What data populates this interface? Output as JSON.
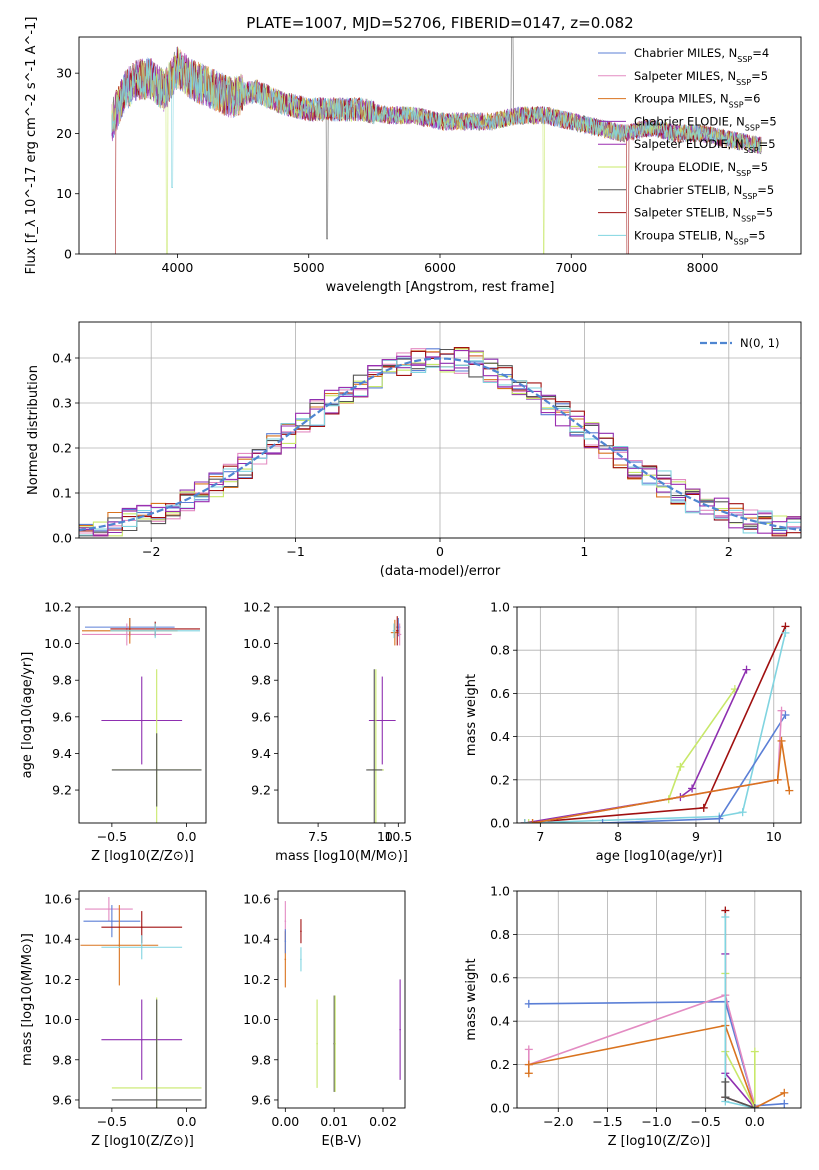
{
  "title": "PLATE=1007, MJD=52706, FIBERID=0147, z=0.082",
  "colors": {
    "chabrier_miles": "#5b7fd6",
    "salpeter_miles": "#e38bc2",
    "kroupa_miles": "#d9731f",
    "chabrier_elodie": "#8e2fb0",
    "salpeter_elodie": "#9b2fb0",
    "kroupa_elodie": "#c8e86a",
    "chabrier_stelib": "#555555",
    "salpeter_stelib": "#a01010",
    "kroupa_stelib": "#80d4e0",
    "gauss": "#4f86d1",
    "grid": "#b0b0b0"
  },
  "chart_data": [
    {
      "id": "spectrum",
      "type": "line",
      "title": "PLATE=1007, MJD=52706, FIBERID=0147, z=0.082",
      "xlabel": "wavelength [Angstrom, rest frame]",
      "ylabel": "Flux [f_λ 10^-17 erg cm^-2 s^-1 A^-1]",
      "xlim": [
        3250,
        8750
      ],
      "ylim": [
        0,
        36
      ],
      "xticks": [
        4000,
        5000,
        6000,
        7000,
        8000
      ],
      "yticks": [
        0,
        10,
        20,
        30
      ],
      "grid": false,
      "legend_position": "top-right",
      "legend": [
        {
          "name": "Chabrier MILES, N",
          "sub": "SSP",
          "suffix": "=4",
          "color_key": "chabrier_miles"
        },
        {
          "name": "Salpeter MILES, N",
          "sub": "SSP",
          "suffix": "=5",
          "color_key": "salpeter_miles"
        },
        {
          "name": "Kroupa MILES, N",
          "sub": "SSP",
          "suffix": "=6",
          "color_key": "kroupa_miles"
        },
        {
          "name": "Chabrier ELODIE, N",
          "sub": "SSP",
          "suffix": "=5",
          "color_key": "chabrier_elodie"
        },
        {
          "name": "Salpeter ELODIE, N",
          "sub": "SSP",
          "suffix": "=5",
          "color_key": "salpeter_elodie"
        },
        {
          "name": "Kroupa ELODIE, N",
          "sub": "SSP",
          "suffix": "=5",
          "color_key": "kroupa_elodie"
        },
        {
          "name": "Chabrier STELIB, N",
          "sub": "SSP",
          "suffix": "=5",
          "color_key": "chabrier_stelib"
        },
        {
          "name": "Salpeter STELIB, N",
          "sub": "SSP",
          "suffix": "=5",
          "color_key": "salpeter_stelib"
        },
        {
          "name": "Kroupa STELIB, N",
          "sub": "SSP",
          "suffix": "=5",
          "color_key": "kroupa_stelib"
        }
      ],
      "envelope": [
        [
          3500,
          22
        ],
        [
          3600,
          27
        ],
        [
          3700,
          29
        ],
        [
          3800,
          29
        ],
        [
          3900,
          27
        ],
        [
          4000,
          31
        ],
        [
          4100,
          29
        ],
        [
          4200,
          28
        ],
        [
          4400,
          26
        ],
        [
          4600,
          27
        ],
        [
          4800,
          25
        ],
        [
          5000,
          24
        ],
        [
          5200,
          24
        ],
        [
          5400,
          24
        ],
        [
          5600,
          23
        ],
        [
          5800,
          23
        ],
        [
          6000,
          22
        ],
        [
          6200,
          22
        ],
        [
          6400,
          22
        ],
        [
          6600,
          23
        ],
        [
          6800,
          23
        ],
        [
          7000,
          22
        ],
        [
          7200,
          21
        ],
        [
          7400,
          20
        ],
        [
          7600,
          21
        ],
        [
          7800,
          20
        ],
        [
          8000,
          20
        ],
        [
          8200,
          19
        ],
        [
          8450,
          18
        ]
      ]
    },
    {
      "id": "residuals",
      "type": "line",
      "xlabel": "(data-model)/error",
      "ylabel": "Normed distribution",
      "xlim": [
        -2.5,
        2.5
      ],
      "ylim": [
        0,
        0.48
      ],
      "xticks": [
        -2,
        -1,
        0,
        1,
        2
      ],
      "yticks": [
        0.0,
        0.1,
        0.2,
        0.3,
        0.4
      ],
      "grid": true,
      "legend_position": "top-right",
      "legend": [
        {
          "name": "N(0, 1)",
          "color_key": "gauss"
        }
      ],
      "gauss": {
        "mean": 0,
        "sigma": 1
      }
    },
    {
      "id": "age_vs_Z",
      "type": "scatter",
      "xlabel": "Z [log10(Z/Z⊙)]",
      "ylabel": "age [log10(age/yr)]",
      "xlim": [
        -0.72,
        0.13
      ],
      "ylim": [
        9.02,
        10.2
      ],
      "xticks": [
        -0.5,
        0.0
      ],
      "yticks": [
        9.2,
        9.4,
        9.6,
        9.8,
        10.0,
        10.2
      ],
      "grid": false,
      "points": [
        {
          "x": -0.38,
          "y": 10.09,
          "xerr": 0.3,
          "yerr": 0.05,
          "color_key": "chabrier_miles"
        },
        {
          "x": -0.4,
          "y": 10.05,
          "xerr": 0.3,
          "yerr": 0.06,
          "color_key": "salpeter_miles"
        },
        {
          "x": -0.38,
          "y": 10.07,
          "xerr": 0.32,
          "yerr": 0.07,
          "color_key": "kroupa_miles"
        },
        {
          "x": -0.21,
          "y": 10.08,
          "xerr": 0.3,
          "yerr": 0.04,
          "color_key": "salpeter_stelib"
        },
        {
          "x": -0.21,
          "y": 10.07,
          "xerr": 0.3,
          "yerr": 0.04,
          "color_key": "kroupa_stelib"
        },
        {
          "x": -0.3,
          "y": 9.58,
          "xerr": 0.27,
          "yerr": 0.24,
          "color_key": "chabrier_elodie"
        },
        {
          "x": -0.2,
          "y": 9.31,
          "xerr": 0.3,
          "yerr": 0.55,
          "color_key": "kroupa_elodie"
        },
        {
          "x": -0.2,
          "y": 9.31,
          "xerr": 0.3,
          "yerr": 0.2,
          "color_key": "chabrier_stelib"
        }
      ]
    },
    {
      "id": "age_vs_mass",
      "type": "scatter",
      "xlabel": "mass [log10(M/M⊙)]",
      "ylabel": "",
      "xlim": [
        6.0,
        10.75
      ],
      "ylim": [
        9.02,
        10.2
      ],
      "xticks": [
        7.5,
        10,
        10.5
      ],
      "yticks": [
        9.2,
        9.4,
        9.6,
        9.8,
        10.0,
        10.2
      ],
      "grid": false,
      "points": [
        {
          "x": 10.5,
          "y": 10.09,
          "xerr": 0.08,
          "yerr": 0.05,
          "color_key": "chabrier_miles"
        },
        {
          "x": 10.55,
          "y": 10.05,
          "xerr": 0.06,
          "yerr": 0.06,
          "color_key": "salpeter_miles"
        },
        {
          "x": 10.37,
          "y": 10.06,
          "xerr": 0.15,
          "yerr": 0.07,
          "color_key": "kroupa_miles"
        },
        {
          "x": 10.46,
          "y": 10.07,
          "xerr": 0.05,
          "yerr": 0.08,
          "color_key": "salpeter_stelib"
        },
        {
          "x": 10.34,
          "y": 10.07,
          "xerr": 0.05,
          "yerr": 0.04,
          "color_key": "kroupa_stelib"
        },
        {
          "x": 9.9,
          "y": 9.58,
          "xerr": 0.5,
          "yerr": 0.24,
          "color_key": "chabrier_elodie"
        },
        {
          "x": 9.66,
          "y": 9.31,
          "xerr": 0.3,
          "yerr": 0.55,
          "color_key": "kroupa_elodie"
        },
        {
          "x": 9.6,
          "y": 9.31,
          "xerr": 0.3,
          "yerr": 0.55,
          "color_key": "chabrier_stelib"
        }
      ]
    },
    {
      "id": "weight_vs_age",
      "type": "line",
      "xlabel": "age [log10(age/yr)]",
      "ylabel": "mass weight",
      "xlim": [
        6.7,
        10.35
      ],
      "ylim": [
        0,
        1.0
      ],
      "xticks": [
        7,
        8,
        9,
        10
      ],
      "yticks": [
        0.0,
        0.2,
        0.4,
        0.6,
        0.8,
        1.0
      ],
      "grid": true,
      "series": [
        {
          "color_key": "kroupa_elodie",
          "x": [
            6.85,
            8.65,
            8.8,
            9.5
          ],
          "y": [
            0.0,
            0.11,
            0.26,
            0.62
          ]
        },
        {
          "color_key": "chabrier_elodie",
          "x": [
            6.8,
            8.8,
            8.95,
            9.65
          ],
          "y": [
            0.0,
            0.12,
            0.16,
            0.71
          ]
        },
        {
          "color_key": "salpeter_stelib",
          "x": [
            6.8,
            9.1,
            10.15
          ],
          "y": [
            0.0,
            0.07,
            0.91
          ]
        },
        {
          "color_key": "kroupa_stelib",
          "x": [
            6.8,
            9.3,
            9.6,
            10.15
          ],
          "y": [
            0.0,
            0.03,
            0.05,
            0.88
          ]
        },
        {
          "color_key": "chabrier_miles",
          "x": [
            7.8,
            9.3,
            10.15
          ],
          "y": [
            0.0,
            0.02,
            0.5
          ]
        },
        {
          "color_key": "salpeter_miles",
          "x": [
            6.9,
            10.05,
            10.1
          ],
          "y": [
            0.0,
            0.2,
            0.52
          ]
        },
        {
          "color_key": "kroupa_miles",
          "x": [
            6.9,
            10.05,
            10.1,
            10.2
          ],
          "y": [
            0.0,
            0.2,
            0.38,
            0.15
          ]
        }
      ]
    },
    {
      "id": "mass_vs_Z",
      "type": "scatter",
      "xlabel": "Z [log10(Z/Z⊙)]",
      "ylabel": "mass [log10(M/M⊙)]",
      "xlim": [
        -0.72,
        0.13
      ],
      "ylim": [
        9.56,
        10.64
      ],
      "xticks": [
        -0.5,
        0.0
      ],
      "yticks": [
        9.6,
        9.8,
        10.0,
        10.2,
        10.4,
        10.6
      ],
      "grid": false,
      "points": [
        {
          "x": -0.52,
          "y": 10.55,
          "xerr": 0.16,
          "yerr": 0.06,
          "color_key": "salpeter_miles"
        },
        {
          "x": -0.5,
          "y": 10.49,
          "xerr": 0.19,
          "yerr": 0.08,
          "color_key": "chabrier_miles"
        },
        {
          "x": -0.45,
          "y": 10.37,
          "xerr": 0.26,
          "yerr": 0.2,
          "color_key": "kroupa_miles"
        },
        {
          "x": -0.3,
          "y": 10.46,
          "xerr": 0.27,
          "yerr": 0.08,
          "color_key": "salpeter_stelib"
        },
        {
          "x": -0.3,
          "y": 10.36,
          "xerr": 0.27,
          "yerr": 0.06,
          "color_key": "kroupa_stelib"
        },
        {
          "x": -0.3,
          "y": 9.9,
          "xerr": 0.27,
          "yerr": 0.2,
          "color_key": "chabrier_elodie"
        },
        {
          "x": -0.2,
          "y": 9.66,
          "xerr": 0.3,
          "yerr": 0.45,
          "color_key": "kroupa_elodie"
        },
        {
          "x": -0.2,
          "y": 9.6,
          "xerr": 0.3,
          "yerr": 0.5,
          "color_key": "chabrier_stelib"
        }
      ]
    },
    {
      "id": "mass_vs_EBV",
      "type": "scatter",
      "xlabel": "E(B-V)",
      "ylabel": "",
      "xlim": [
        -0.0015,
        0.0245
      ],
      "ylim": [
        9.56,
        10.64
      ],
      "xticks": [
        0.0,
        0.01,
        0.02
      ],
      "yticks": [
        9.6,
        9.8,
        10.0,
        10.2,
        10.4,
        10.6
      ],
      "grid": false,
      "points": [
        {
          "x": 0.0,
          "y": 10.49,
          "yerr": 0.1,
          "color_key": "salpeter_miles"
        },
        {
          "x": 0.0,
          "y": 10.3,
          "yerr": 0.14,
          "color_key": "kroupa_miles"
        },
        {
          "x": 0.0,
          "y": 10.39,
          "yerr": 0.06,
          "color_key": "chabrier_miles"
        },
        {
          "x": 0.0032,
          "y": 10.44,
          "yerr": 0.06,
          "color_key": "salpeter_stelib"
        },
        {
          "x": 0.0032,
          "y": 10.3,
          "yerr": 0.06,
          "color_key": "kroupa_stelib"
        },
        {
          "x": 0.0065,
          "y": 9.88,
          "yerr": 0.22,
          "color_key": "kroupa_elodie"
        },
        {
          "x": 0.01,
          "y": 9.88,
          "yerr": 0.24,
          "color_key": "chabrier_stelib"
        },
        {
          "x": 0.0102,
          "y": 9.88,
          "yerr": 0.24,
          "color_key": "kroupa_elodie"
        },
        {
          "x": 0.0235,
          "y": 9.95,
          "yerr": 0.25,
          "color_key": "chabrier_elodie"
        }
      ]
    },
    {
      "id": "weight_vs_Z",
      "type": "line",
      "xlabel": "Z [log10(Z/Z⊙)]",
      "ylabel": "mass weight",
      "xlim": [
        -2.42,
        0.47
      ],
      "ylim": [
        0,
        1.0
      ],
      "xticks": [
        -2.0,
        -1.5,
        -1.0,
        -0.5,
        0.0
      ],
      "yticks": [
        0.0,
        0.2,
        0.4,
        0.6,
        0.8,
        1.0
      ],
      "grid": true,
      "series": [
        {
          "color_key": "chabrier_miles",
          "x": [
            -2.3,
            -0.3,
            0.0,
            0.3
          ],
          "y": [
            0.48,
            0.49,
            0.01,
            0.02
          ]
        },
        {
          "color_key": "salpeter_miles",
          "x": [
            -2.3,
            -2.3,
            -0.3,
            0.0
          ],
          "y": [
            0.27,
            0.2,
            0.52,
            0.01
          ]
        },
        {
          "color_key": "kroupa_miles",
          "x": [
            -2.3,
            -2.3,
            -0.3,
            0.0,
            0.3
          ],
          "y": [
            0.16,
            0.2,
            0.38,
            0.0,
            0.07
          ]
        },
        {
          "color_key": "chabrier_elodie",
          "x": [
            -0.3,
            -0.3,
            0.0
          ],
          "y": [
            0.71,
            0.16,
            0.0
          ]
        },
        {
          "color_key": "kroupa_elodie",
          "x": [
            -0.3,
            -0.3,
            0.0,
            0.0
          ],
          "y": [
            0.62,
            0.26,
            0.0,
            0.26
          ]
        },
        {
          "color_key": "salpeter_stelib",
          "x": [
            -0.3,
            -0.3,
            0.0
          ],
          "y": [
            0.91,
            0.05,
            0.0
          ]
        },
        {
          "color_key": "kroupa_stelib",
          "x": [
            -0.3,
            -0.3,
            0.0
          ],
          "y": [
            0.88,
            0.03,
            0.0
          ]
        },
        {
          "color_key": "chabrier_stelib",
          "x": [
            -0.3,
            -0.3,
            0.0
          ],
          "y": [
            0.12,
            0.05,
            0.0
          ]
        }
      ]
    }
  ]
}
